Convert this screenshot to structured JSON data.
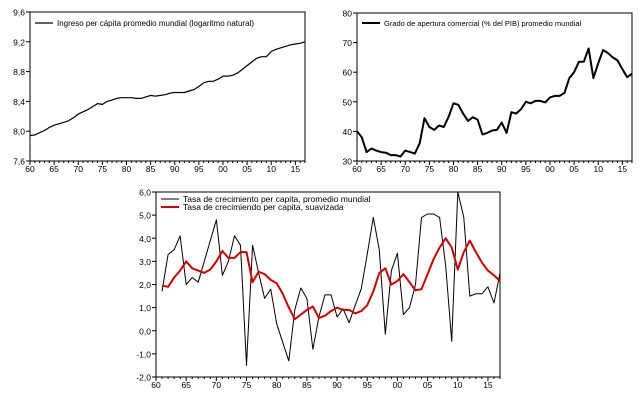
{
  "chart_data": [
    {
      "type": "line",
      "xlim": [
        1960,
        2017
      ],
      "ylim": [
        7.6,
        9.6
      ],
      "yticks": [
        "7,6",
        "8,0",
        "8,4",
        "8,8",
        "9,2",
        "9,6"
      ],
      "ytick_values": [
        7.6,
        8.0,
        8.4,
        8.8,
        9.2,
        9.6
      ],
      "xticks": [
        "60",
        "65",
        "70",
        "75",
        "80",
        "85",
        "90",
        "95",
        "00",
        "05",
        "10",
        "15"
      ],
      "grid": false,
      "legend_position": "top-left",
      "x": [
        1960,
        1961,
        1962,
        1963,
        1964,
        1965,
        1966,
        1967,
        1968,
        1969,
        1970,
        1971,
        1972,
        1973,
        1974,
        1975,
        1976,
        1977,
        1978,
        1979,
        1980,
        1981,
        1982,
        1983,
        1984,
        1985,
        1986,
        1987,
        1988,
        1989,
        1990,
        1991,
        1992,
        1993,
        1994,
        1995,
        1996,
        1997,
        1998,
        1999,
        2000,
        2001,
        2002,
        2003,
        2004,
        2005,
        2006,
        2007,
        2008,
        2009,
        2010,
        2011,
        2012,
        2013,
        2014,
        2015,
        2016,
        2017
      ],
      "series": [
        {
          "name": "Ingreso per cápita promedio mundial (logaritmo natural)",
          "color": "#000000",
          "values": [
            7.94,
            7.95,
            7.98,
            8.01,
            8.05,
            8.08,
            8.1,
            8.12,
            8.14,
            8.18,
            8.23,
            8.26,
            8.29,
            8.33,
            8.37,
            8.36,
            8.4,
            8.42,
            8.44,
            8.45,
            8.45,
            8.45,
            8.44,
            8.44,
            8.46,
            8.48,
            8.47,
            8.48,
            8.49,
            8.51,
            8.52,
            8.52,
            8.52,
            8.54,
            8.56,
            8.6,
            8.65,
            8.67,
            8.67,
            8.7,
            8.74,
            8.74,
            8.75,
            8.78,
            8.83,
            8.88,
            8.93,
            8.98,
            9.0,
            9.0,
            9.07,
            9.1,
            9.12,
            9.14,
            9.16,
            9.17,
            9.18,
            9.2
          ]
        }
      ]
    },
    {
      "type": "line",
      "xlim": [
        1960,
        2017
      ],
      "ylim": [
        30,
        80
      ],
      "yticks": [
        "30",
        "40",
        "50",
        "60",
        "70",
        "80"
      ],
      "ytick_values": [
        30,
        40,
        50,
        60,
        70,
        80
      ],
      "xticks": [
        "60",
        "65",
        "70",
        "75",
        "80",
        "85",
        "90",
        "95",
        "00",
        "05",
        "10",
        "15"
      ],
      "grid": false,
      "legend_position": "top-left",
      "x": [
        1960,
        1961,
        1962,
        1963,
        1964,
        1965,
        1966,
        1967,
        1968,
        1969,
        1970,
        1971,
        1972,
        1973,
        1974,
        1975,
        1976,
        1977,
        1978,
        1979,
        1980,
        1981,
        1982,
        1983,
        1984,
        1985,
        1986,
        1987,
        1988,
        1989,
        1990,
        1991,
        1992,
        1993,
        1994,
        1995,
        1996,
        1997,
        1998,
        1999,
        2000,
        2001,
        2002,
        2003,
        2004,
        2005,
        2006,
        2007,
        2008,
        2009,
        2010,
        2011,
        2012,
        2013,
        2014,
        2015,
        2016,
        2017
      ],
      "series": [
        {
          "name": "Grado de apertura comercial (% del PIB) promedio mundial",
          "color": "#000000",
          "values": [
            40,
            38,
            33,
            34.2,
            33.5,
            33,
            32.8,
            32,
            32,
            31.5,
            33.5,
            33,
            32.5,
            36,
            44.5,
            41.5,
            40.5,
            42,
            41.5,
            45,
            49.5,
            49,
            46,
            43.5,
            44.8,
            44,
            39,
            39.5,
            40.3,
            40.5,
            43,
            39.5,
            46.5,
            46,
            47.5,
            50,
            49.5,
            50.3,
            50.3,
            49.8,
            51.5,
            52,
            52,
            53,
            58,
            60,
            63.5,
            63.5,
            68,
            58,
            63,
            67.5,
            66.5,
            65,
            64,
            61,
            58.3,
            59.5
          ]
        }
      ]
    },
    {
      "type": "line",
      "xlim": [
        1960,
        2017
      ],
      "ylim": [
        -2,
        6
      ],
      "yticks": [
        "-2,0",
        "-1,0",
        "0,0",
        "1,0",
        "2,0",
        "3,0",
        "4,0",
        "5,0",
        "6,0"
      ],
      "ytick_values": [
        -2,
        -1,
        0,
        1,
        2,
        3,
        4,
        5,
        6
      ],
      "xticks": [
        "60",
        "65",
        "70",
        "75",
        "80",
        "85",
        "90",
        "95",
        "00",
        "05",
        "10",
        "15"
      ],
      "grid": false,
      "legend_position": "top-left",
      "x": [
        1961,
        1962,
        1963,
        1964,
        1965,
        1966,
        1967,
        1968,
        1969,
        1970,
        1971,
        1972,
        1973,
        1974,
        1975,
        1976,
        1977,
        1978,
        1979,
        1980,
        1981,
        1982,
        1983,
        1984,
        1985,
        1986,
        1987,
        1988,
        1989,
        1990,
        1991,
        1992,
        1993,
        1994,
        1995,
        1996,
        1997,
        1998,
        1999,
        2000,
        2001,
        2002,
        2003,
        2004,
        2005,
        2006,
        2007,
        2008,
        2009,
        2010,
        2011,
        2012,
        2013,
        2014,
        2015,
        2016,
        2017
      ],
      "series": [
        {
          "name": "Tasa de crecimiento per capita, promedio mundial",
          "color": "#000000",
          "values": [
            1.7,
            3.3,
            3.5,
            4.1,
            2.0,
            2.3,
            2.1,
            3.0,
            3.9,
            4.8,
            2.4,
            3.0,
            4.1,
            3.7,
            -1.5,
            3.7,
            2.5,
            1.4,
            1.8,
            0.3,
            -0.5,
            -1.3,
            0.9,
            1.85,
            1.4,
            -0.8,
            0.6,
            1.55,
            1.55,
            0.6,
            0.95,
            0.35,
            1.1,
            1.8,
            3.3,
            4.9,
            3.5,
            -0.15,
            2.6,
            3.35,
            0.7,
            1.0,
            2.0,
            4.9,
            5.05,
            5.05,
            4.9,
            2.8,
            -0.45,
            6.0,
            4.9,
            1.5,
            1.6,
            1.6,
            1.9,
            1.2,
            2.5
          ]
        },
        {
          "name": "Tasa de crecimiendo per capita, suavizada",
          "color": "#cc0000",
          "values": [
            1.95,
            1.9,
            2.3,
            2.6,
            3.0,
            2.7,
            2.6,
            2.5,
            2.65,
            3.0,
            3.45,
            3.15,
            3.15,
            3.4,
            3.4,
            2.1,
            2.55,
            2.45,
            2.2,
            2.05,
            1.6,
            1.0,
            0.5,
            0.7,
            0.9,
            1.05,
            0.55,
            0.65,
            0.85,
            1.0,
            0.9,
            0.9,
            0.75,
            0.85,
            1.1,
            1.7,
            2.5,
            2.7,
            2.0,
            2.15,
            2.45,
            2.1,
            1.75,
            1.8,
            2.45,
            3.1,
            3.6,
            4.0,
            3.6,
            2.65,
            3.4,
            3.9,
            3.4,
            2.95,
            2.6,
            2.4,
            2.15
          ]
        }
      ]
    }
  ]
}
